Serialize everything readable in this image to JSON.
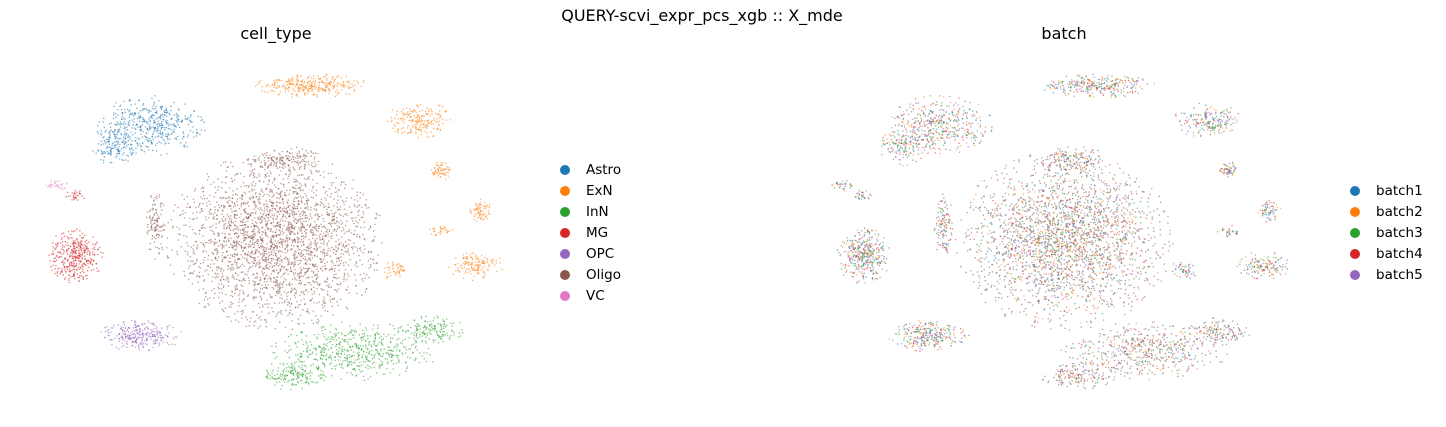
{
  "figure": {
    "title": "QUERY-scvi_expr_pcs_xgb :: X_mde"
  },
  "chart_data": [
    {
      "type": "scatter",
      "title": "cell_type",
      "xlabel": "",
      "ylabel": "",
      "grid": false,
      "axes_visible": false,
      "legend_position": "right",
      "legend": [
        {
          "label": "Astro",
          "color": "#1f77b4"
        },
        {
          "label": "ExN",
          "color": "#ff7f0e"
        },
        {
          "label": "InN",
          "color": "#2ca02c"
        },
        {
          "label": "MG",
          "color": "#d62728"
        },
        {
          "label": "OPC",
          "color": "#9467bd"
        },
        {
          "label": "Oligo",
          "color": "#8c564b"
        },
        {
          "label": "VC",
          "color": "#e377c2"
        }
      ]
    },
    {
      "type": "scatter",
      "title": "batch",
      "xlabel": "",
      "ylabel": "",
      "grid": false,
      "axes_visible": false,
      "legend_position": "right",
      "legend": [
        {
          "label": "batch1",
          "color": "#1f77b4"
        },
        {
          "label": "batch2",
          "color": "#ff7f0e"
        },
        {
          "label": "batch3",
          "color": "#2ca02c"
        },
        {
          "label": "batch4",
          "color": "#d62728"
        },
        {
          "label": "batch5",
          "color": "#9467bd"
        }
      ]
    }
  ]
}
